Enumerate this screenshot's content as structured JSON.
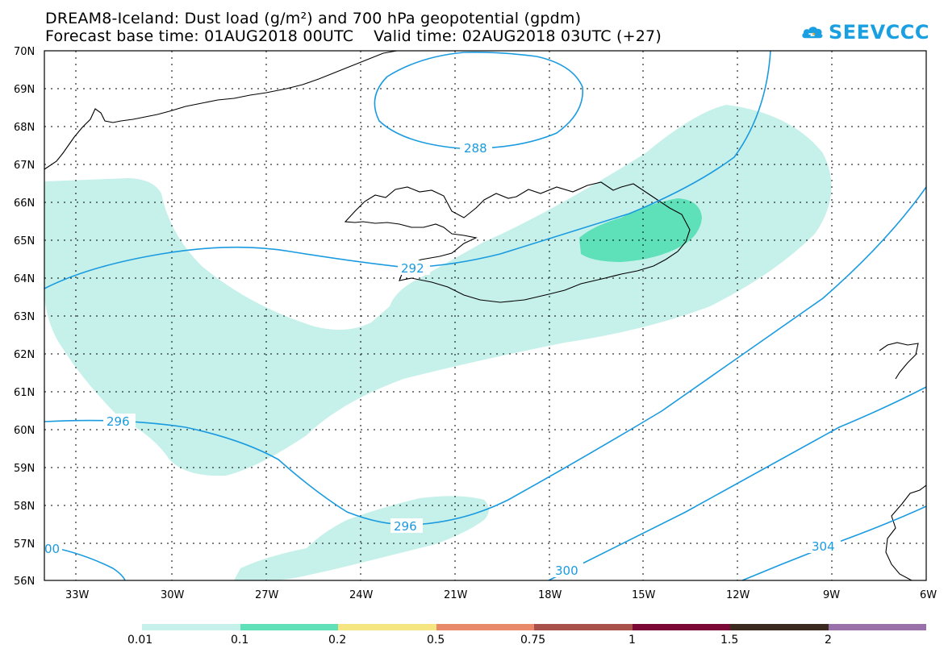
{
  "title_line1": "DREAM8-Iceland: Dust load (g/m²) and 700 hPa geopotential (gpdm)",
  "title_line2": "Forecast base time: 01AUG2018 00UTC    Valid time: 02AUG2018 03UTC (+27)",
  "logo_text": "SEEVCCC",
  "map": {
    "lat_labels": [
      "70N",
      "69N",
      "68N",
      "67N",
      "66N",
      "65N",
      "64N",
      "63N",
      "62N",
      "61N",
      "60N",
      "59N",
      "58N",
      "57N",
      "56N"
    ],
    "lon_labels": [
      "33W",
      "30W",
      "27W",
      "24W",
      "21W",
      "18W",
      "15W",
      "12W",
      "9W",
      "6W"
    ],
    "contour_labels": [
      "288",
      "292",
      "296",
      "296",
      "300",
      "304",
      "00"
    ],
    "colors": {
      "dust_light": "#c6f0ea",
      "dust_mid": "#5ee0b8",
      "contour": "#1a9be0",
      "coast": "#000000"
    }
  },
  "colorbar": {
    "labels": [
      "0.01",
      "0.1",
      "0.2",
      "0.5",
      "0.75",
      "1",
      "1.5",
      "2"
    ],
    "colors": [
      "#c6f0ea",
      "#5ee0b8",
      "#f5e682",
      "#e88a6a",
      "#a8514a",
      "#7a0a35",
      "#3a2a20",
      "#9a70a8"
    ]
  }
}
